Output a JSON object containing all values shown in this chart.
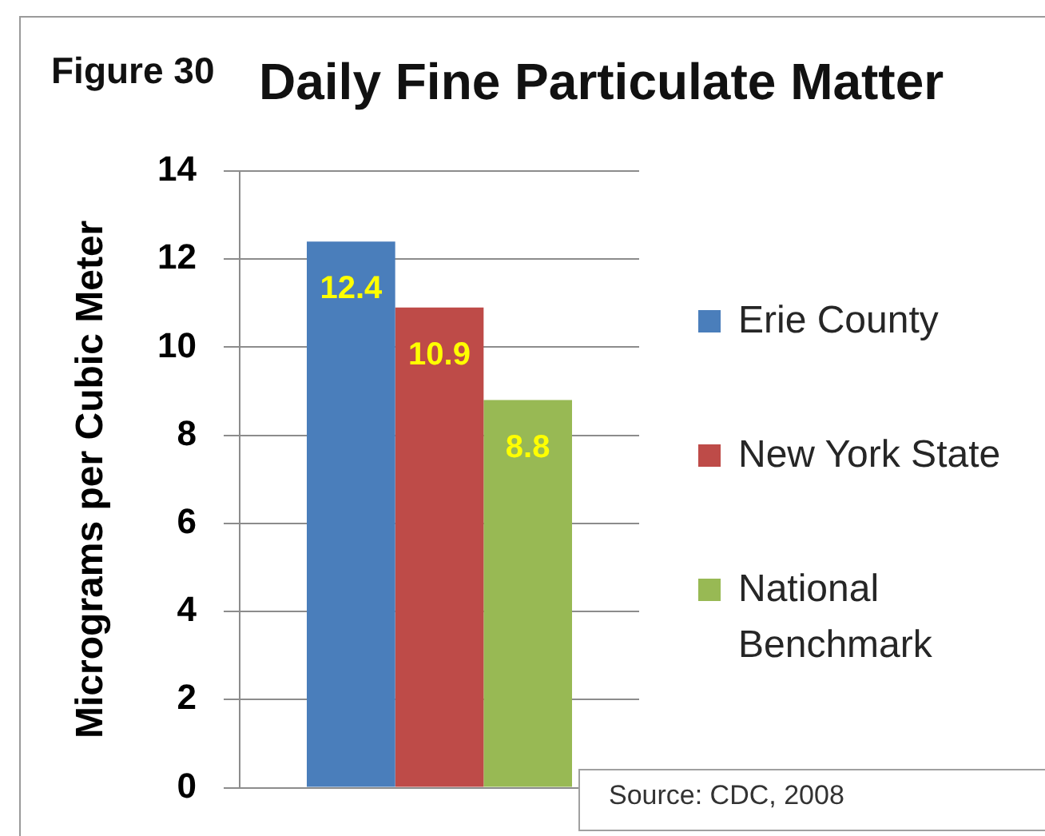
{
  "chart_data": {
    "type": "bar",
    "title": "Daily Fine Particulate Matter",
    "ylabel": "Micrograms per Cubic Meter",
    "categories": [
      null
    ],
    "series": [
      {
        "name": "Erie County",
        "color": "#4a7ebb",
        "values": [
          12.4
        ]
      },
      {
        "name": "New York State",
        "color": "#be4b48",
        "values": [
          10.9
        ]
      },
      {
        "name": "National Benchmark",
        "color": "#98b954",
        "values": [
          8.8
        ]
      }
    ],
    "ylim": [
      0,
      14
    ],
    "yticks": [
      0,
      2,
      4,
      6,
      8,
      10,
      12,
      14
    ],
    "grid": "y",
    "legend": "right",
    "data_labels": true,
    "annotations": [
      "Figure 30",
      "Source: CDC, 2008"
    ]
  }
}
